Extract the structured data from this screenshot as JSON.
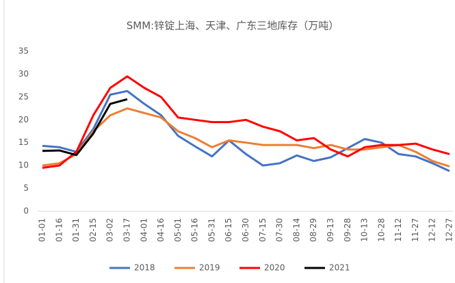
{
  "chart_data": {
    "type": "line",
    "title": "SMM:锌锭上海、天津、广东三地库存（万吨）",
    "categories": [
      "01-01",
      "01-16",
      "01-31",
      "02-15",
      "03-02",
      "03-17",
      "04-01",
      "04-16",
      "05-01",
      "05-16",
      "05-31",
      "06-15",
      "06-30",
      "07-15",
      "07-30",
      "08-14",
      "08-29",
      "09-13",
      "09-28",
      "10-13",
      "10-28",
      "11-12",
      "11-27",
      "12-12",
      "12-27"
    ],
    "series": [
      {
        "name": "2018",
        "color": "#4472c4",
        "values": [
          14.3,
          14.0,
          13.0,
          18,
          25.5,
          26.3,
          23.5,
          21,
          16.5,
          14.2,
          12,
          15.5,
          12.5,
          10,
          10.5,
          12.2,
          11,
          11.8,
          13.8,
          15.8,
          15,
          12.5,
          12,
          10.5,
          8.8
        ]
      },
      {
        "name": "2019",
        "color": "#ed7d31",
        "values": [
          10,
          10.5,
          12.5,
          17.5,
          21,
          22.5,
          21.5,
          20.5,
          17.5,
          16,
          14,
          15.5,
          15,
          14.5,
          14.5,
          14.5,
          13.8,
          14.5,
          13.5,
          13.5,
          14,
          14.5,
          13,
          11,
          9.8
        ]
      },
      {
        "name": "2020",
        "color": "#ff0000",
        "values": [
          9.5,
          10,
          13,
          21,
          27,
          29.5,
          27,
          25,
          20.5,
          20,
          19.5,
          19.5,
          20,
          18.5,
          17.5,
          15.5,
          16,
          13.5,
          12,
          14,
          14.5,
          14.5,
          14.8,
          13.5,
          12.5
        ]
      },
      {
        "name": "2021",
        "color": "#000000",
        "values": [
          13.2,
          13.3,
          12.3,
          17,
          23.5,
          24.5,
          null,
          null,
          null,
          null,
          null,
          null,
          null,
          null,
          null,
          null,
          null,
          null,
          null,
          null,
          null,
          null,
          null,
          null,
          null
        ]
      }
    ],
    "ylim": [
      0,
      35
    ],
    "yticks": [
      0,
      5,
      10,
      15,
      20,
      25,
      30,
      35
    ],
    "grid": false,
    "legend": "bottom"
  }
}
